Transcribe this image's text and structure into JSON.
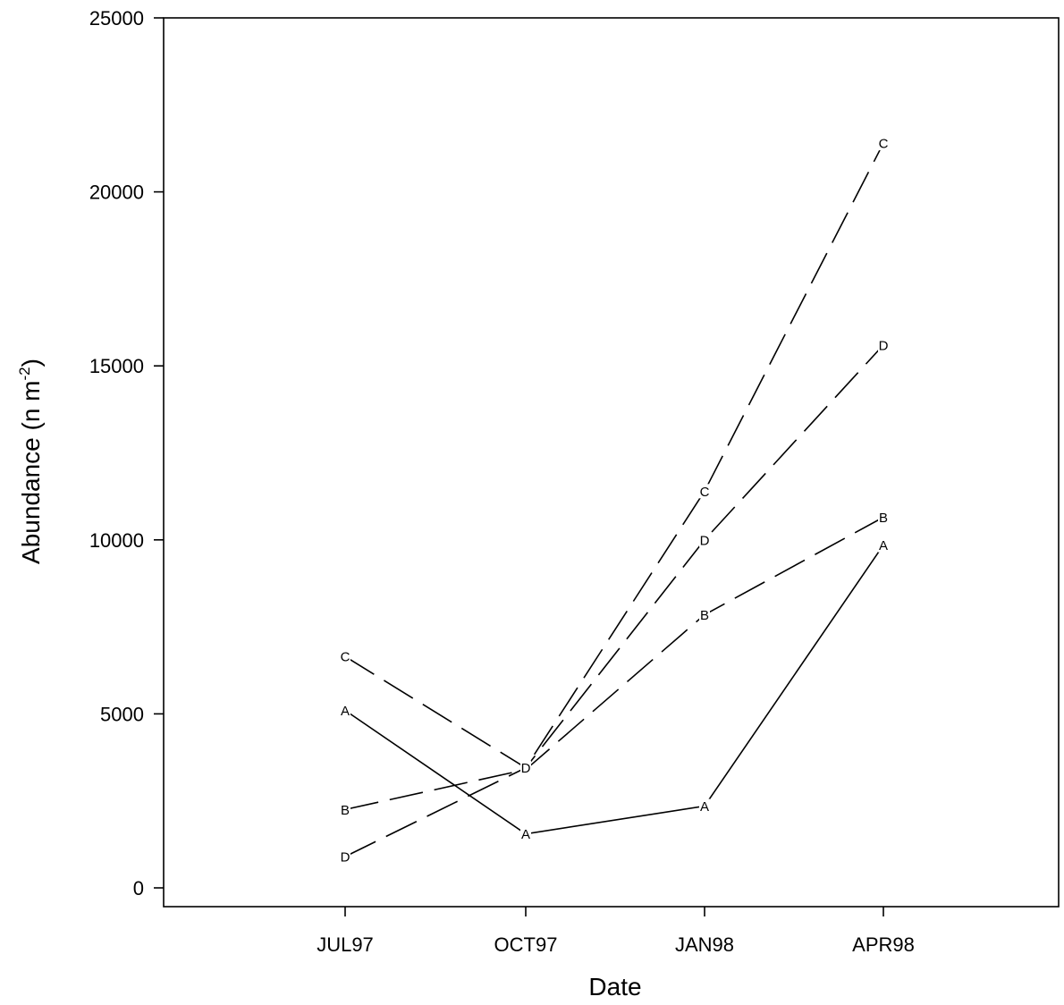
{
  "chart_data": {
    "type": "line",
    "title": "",
    "xlabel": "Date",
    "ylabel_main": "Abundance (n m",
    "ylabel_sup": "-2",
    "ylabel_close": ")",
    "categories": [
      "JUL97",
      "OCT97",
      "JAN98",
      "APR98"
    ],
    "ylim": [
      0,
      25000
    ],
    "yticks": [
      0,
      5000,
      10000,
      15000,
      20000,
      25000
    ],
    "grid": false,
    "series": [
      {
        "marker": "A",
        "line_style": "solid",
        "values": [
          5100,
          1550,
          2350,
          9850
        ]
      },
      {
        "marker": "B",
        "line_style": "dashed",
        "values": [
          2250,
          3400,
          7850,
          10650
        ]
      },
      {
        "marker": "C",
        "line_style": "dashed",
        "values": [
          6650,
          3450,
          11400,
          21400
        ]
      },
      {
        "marker": "D",
        "line_style": "dashed",
        "values": [
          900,
          3450,
          10000,
          15600
        ]
      }
    ]
  }
}
